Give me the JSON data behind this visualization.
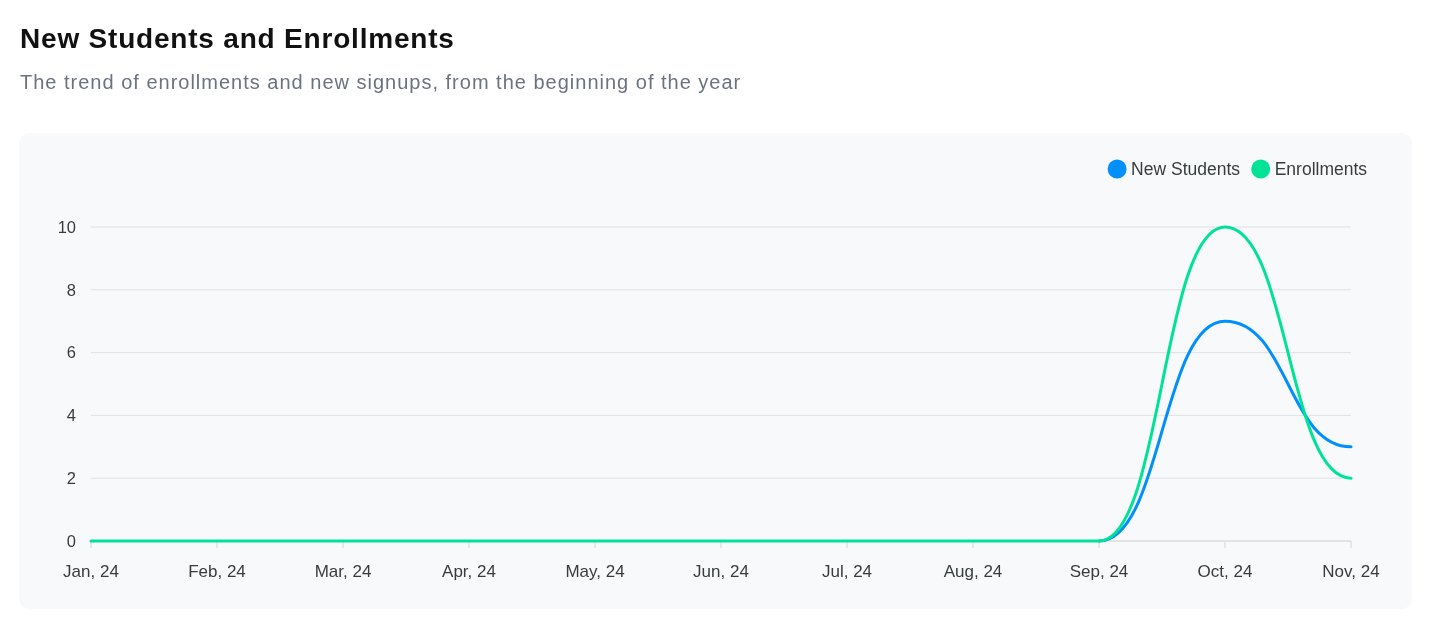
{
  "chart_data": {
    "type": "line",
    "title": "New Students and Enrollments",
    "subtitle": "The trend of enrollments and new signups, from the beginning of the year",
    "categories": [
      "Jan, 24",
      "Feb, 24",
      "Mar, 24",
      "Apr, 24",
      "May, 24",
      "Jun, 24",
      "Jul, 24",
      "Aug, 24",
      "Sep, 24",
      "Oct, 24",
      "Nov, 24"
    ],
    "series": [
      {
        "name": "New Students",
        "color": "#008ffb",
        "values": [
          null,
          null,
          null,
          null,
          null,
          null,
          null,
          null,
          0,
          7,
          3
        ]
      },
      {
        "name": "Enrollments",
        "color": "#00e396",
        "values": [
          0,
          0,
          0,
          0,
          0,
          0,
          0,
          0,
          0,
          10,
          2
        ]
      }
    ],
    "ylim": [
      0,
      10
    ],
    "yticks": [
      0,
      2,
      4,
      6,
      8,
      10
    ],
    "grid": "y",
    "legend": "top right",
    "marker": "none",
    "line_style": "solid"
  }
}
